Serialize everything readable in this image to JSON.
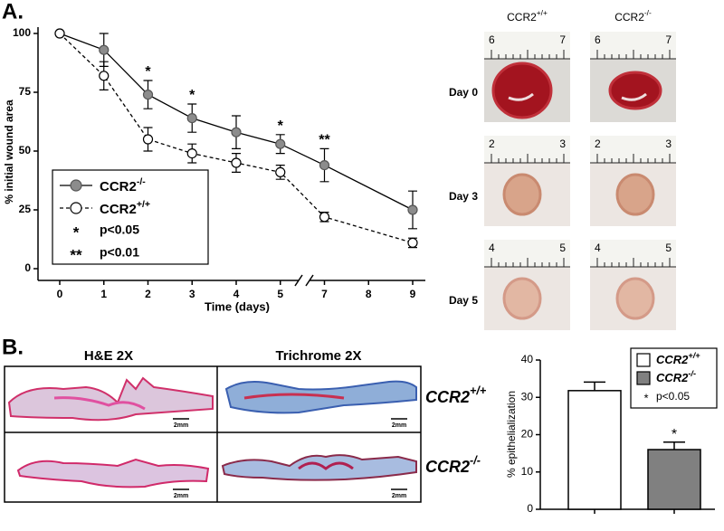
{
  "panel_labels": [
    "A.",
    "B."
  ],
  "chart_data": [
    {
      "type": "line",
      "ylabel": "% initial wound area",
      "xlabel": "Time (days)",
      "x": [
        0,
        1,
        2,
        3,
        4,
        5,
        7,
        9
      ],
      "xlim": [
        0,
        9
      ],
      "xticks": [
        0,
        1,
        2,
        3,
        4,
        5,
        7,
        8,
        9
      ],
      "axis_break": [
        5,
        7
      ],
      "ylim": [
        0,
        100
      ],
      "yticks": [
        0,
        25,
        50,
        75,
        100
      ],
      "series": [
        {
          "name": "CCR2",
          "name_sup": "-/-",
          "color": "#000000",
          "marker_fill": "#8c8c8c",
          "line_style": "solid",
          "values": [
            100,
            93,
            74,
            64,
            58,
            53,
            44,
            25
          ],
          "errors": [
            0,
            7,
            6,
            6,
            7,
            4,
            7,
            8
          ]
        },
        {
          "name": "CCR2",
          "name_sup": "+/+",
          "color": "#000000",
          "marker_fill": "#ffffff",
          "line_style": "dashed",
          "values": [
            100,
            82,
            55,
            49,
            45,
            41,
            22,
            11
          ],
          "errors": [
            0,
            6,
            5,
            4,
            4,
            3,
            2,
            2
          ]
        }
      ],
      "annotations": [
        {
          "x": 2,
          "text": "*"
        },
        {
          "x": 3,
          "text": "*"
        },
        {
          "x": 5,
          "text": "*"
        },
        {
          "x": 7,
          "text": "**"
        }
      ],
      "significance_legend": [
        {
          "symbol": "*",
          "label": "p<0.05"
        },
        {
          "symbol": "**",
          "label": "p<0.01"
        }
      ]
    },
    {
      "type": "bar",
      "ylabel": "% epithelialization",
      "categories": [
        null
      ],
      "ylim": [
        0,
        40
      ],
      "yticks": [
        0,
        10,
        20,
        30,
        40
      ],
      "series": [
        {
          "name": "CCR2",
          "name_sup": "+/+",
          "color": "#ffffff",
          "values": [
            31.8
          ],
          "errors": [
            2.3
          ]
        },
        {
          "name": "CCR2",
          "name_sup": "-/-",
          "color": "#808080",
          "values": [
            16
          ],
          "errors": [
            2
          ]
        }
      ],
      "annotations": [
        {
          "series": 1,
          "text": "*"
        }
      ],
      "significance_legend": [
        {
          "symbol": "*",
          "label": "p<0.05"
        }
      ]
    }
  ],
  "photos": {
    "columns": [
      {
        "name": "CCR2",
        "name_sup": "+/+"
      },
      {
        "name": "CCR2",
        "name_sup": "-/-"
      }
    ],
    "rows": [
      {
        "label": "Day 0",
        "ruler": [
          "6",
          "7"
        ]
      },
      {
        "label": "Day 3",
        "ruler": [
          "2",
          "3"
        ]
      },
      {
        "label": "Day 5",
        "ruler": [
          "4",
          "5"
        ]
      }
    ]
  },
  "histology": {
    "columns": [
      "H&E 2X",
      "Trichrome 2X"
    ],
    "rows": [
      {
        "name": "CCR2",
        "name_sup": "+/+"
      },
      {
        "name": "CCR2",
        "name_sup": "-/-"
      }
    ],
    "scale_bar": "2mm"
  }
}
